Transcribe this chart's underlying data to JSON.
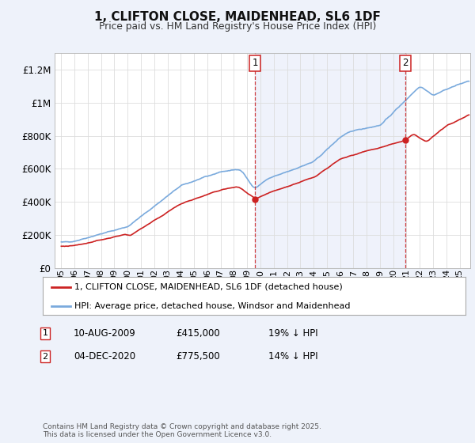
{
  "title": "1, CLIFTON CLOSE, MAIDENHEAD, SL6 1DF",
  "subtitle": "Price paid vs. HM Land Registry's House Price Index (HPI)",
  "background_color": "#eef2fa",
  "plot_bg_color": "#ffffff",
  "hpi_color": "#7aaadd",
  "price_color": "#cc2222",
  "vline_color": "#cc2222",
  "sale1_date": 2009.61,
  "sale1_price": 415000,
  "sale1_label": "1",
  "sale2_date": 2020.92,
  "sale2_price": 775500,
  "sale2_label": "2",
  "legend_label_price": "1, CLIFTON CLOSE, MAIDENHEAD, SL6 1DF (detached house)",
  "legend_label_hpi": "HPI: Average price, detached house, Windsor and Maidenhead",
  "footer": "Contains HM Land Registry data © Crown copyright and database right 2025.\nThis data is licensed under the Open Government Licence v3.0.",
  "ylim": [
    0,
    1300000
  ],
  "xlim_start": 1994.5,
  "xlim_end": 2025.8,
  "yticks": [
    0,
    200000,
    400000,
    600000,
    800000,
    1000000,
    1200000
  ],
  "ytick_labels": [
    "£0",
    "£200K",
    "£400K",
    "£600K",
    "£800K",
    "£1M",
    "£1.2M"
  ],
  "xticks": [
    1995,
    1996,
    1997,
    1998,
    1999,
    2000,
    2001,
    2002,
    2003,
    2004,
    2005,
    2006,
    2007,
    2008,
    2009,
    2010,
    2011,
    2012,
    2013,
    2014,
    2015,
    2016,
    2017,
    2018,
    2019,
    2020,
    2021,
    2022,
    2023,
    2024,
    2025
  ],
  "xtick_labels": [
    "95",
    "96",
    "97",
    "98",
    "99",
    "00",
    "01",
    "02",
    "03",
    "04",
    "05",
    "06",
    "07",
    "08",
    "09",
    "10",
    "11",
    "12",
    "13",
    "14",
    "15",
    "16",
    "17",
    "18",
    "19",
    "20",
    "21",
    "22",
    "23",
    "24",
    "25"
  ]
}
